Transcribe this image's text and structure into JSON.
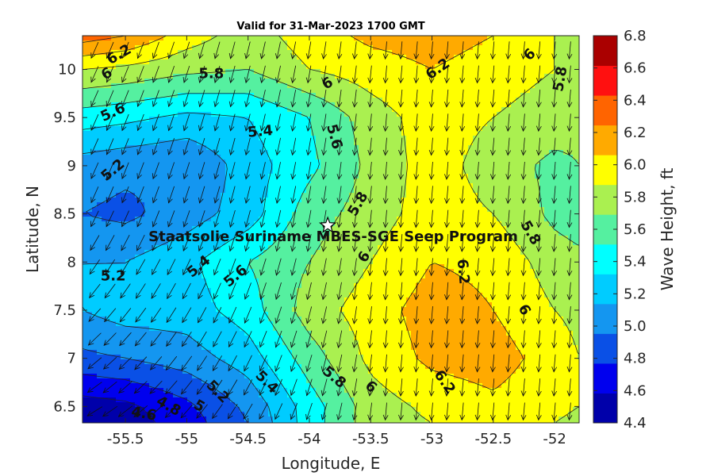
{
  "chart_data": {
    "type": "heatmap",
    "title": "Valid for 31-Mar-2023 1700 GMT",
    "xlabel": "Longitude, E",
    "ylabel": "Latitude, N",
    "xlim": [
      -55.85,
      -51.8
    ],
    "ylim": [
      6.33,
      10.35
    ],
    "x_ticks": [
      -55.5,
      -55,
      -54.5,
      -54,
      -53.5,
      -53,
      -52.5,
      -52
    ],
    "y_ticks": [
      6.5,
      7,
      7.5,
      8,
      8.5,
      9,
      9.5,
      10
    ],
    "x_tick_labels": [
      "-55.5",
      "-55",
      "-54.5",
      "-54",
      "-53.5",
      "-53",
      "-52.5",
      "-52"
    ],
    "y_tick_labels": [
      "6.5",
      "7",
      "7.5",
      "8",
      "8.5",
      "9",
      "9.5",
      "10"
    ],
    "colorbar": {
      "label": "Wave Height, ft",
      "range": [
        4.4,
        6.8
      ],
      "levels": [
        4.4,
        4.6,
        4.8,
        5.0,
        5.2,
        5.4,
        5.6,
        5.8,
        6.0,
        6.2,
        6.4,
        6.6,
        6.8
      ],
      "tick_labels": [
        "4.4",
        "4.6",
        "4.8",
        "5.0",
        "5.2",
        "5.4",
        "5.6",
        "5.8",
        "6.0",
        "6.2",
        "6.4",
        "6.6",
        "6.8"
      ],
      "colors": [
        "#0000aa",
        "#0000ee",
        "#0a50e6",
        "#1496f0",
        "#00ccff",
        "#00ffff",
        "#55f0a0",
        "#aaf050",
        "#ffff00",
        "#ffaa00",
        "#ff6400",
        "#ff1010",
        "#aa0000"
      ]
    },
    "field_nodes": {
      "x": [
        -55.85,
        -55.5,
        -55.0,
        -54.5,
        -54.0,
        -53.5,
        -53.0,
        -52.5,
        -52.0,
        -51.8
      ],
      "y": [
        6.33,
        6.5,
        7.0,
        7.5,
        8.0,
        8.5,
        9.0,
        9.5,
        10.0,
        10.35
      ],
      "z": [
        [
          4.45,
          4.5,
          4.7,
          5.0,
          5.5,
          5.9,
          6.0,
          6.1,
          6.0,
          5.95
        ],
        [
          4.5,
          4.55,
          4.75,
          5.05,
          5.5,
          5.9,
          6.05,
          6.15,
          6.05,
          6.0
        ],
        [
          4.95,
          5.0,
          5.1,
          5.3,
          5.7,
          6.05,
          6.25,
          6.3,
          6.1,
          6.0
        ],
        [
          5.2,
          5.3,
          5.3,
          5.5,
          5.9,
          6.1,
          6.3,
          6.2,
          6.0,
          5.95
        ],
        [
          5.2,
          5.2,
          5.35,
          5.6,
          5.8,
          6.0,
          6.2,
          6.15,
          5.9,
          5.85
        ],
        [
          5.0,
          4.95,
          5.1,
          5.3,
          5.7,
          5.9,
          6.1,
          6.0,
          5.75,
          5.7
        ],
        [
          5.1,
          5.05,
          5.0,
          5.3,
          5.55,
          5.85,
          6.1,
          5.9,
          5.75,
          5.8
        ],
        [
          5.5,
          5.45,
          5.35,
          5.4,
          5.6,
          5.9,
          6.1,
          6.0,
          5.9,
          5.85
        ],
        [
          6.0,
          5.95,
          5.85,
          5.8,
          6.0,
          6.1,
          6.2,
          6.1,
          6.0,
          5.9
        ],
        [
          6.5,
          6.4,
          6.1,
          5.9,
          6.1,
          6.25,
          6.3,
          6.2,
          6.0,
          5.9
        ]
      ]
    },
    "contour_labels": [
      {
        "text": "6.2",
        "lon": -55.55,
        "lat": 10.15,
        "rot": -30
      },
      {
        "text": "6",
        "lon": -55.65,
        "lat": 9.95,
        "rot": -30
      },
      {
        "text": "5.8",
        "lon": -54.8,
        "lat": 9.95,
        "rot": 0
      },
      {
        "text": "5.6",
        "lon": -55.6,
        "lat": 9.55,
        "rot": -25
      },
      {
        "text": "5.4",
        "lon": -54.4,
        "lat": 9.35,
        "rot": -5
      },
      {
        "text": "5.2",
        "lon": -55.6,
        "lat": 8.95,
        "rot": -40
      },
      {
        "text": "5.6",
        "lon": -53.8,
        "lat": 9.3,
        "rot": 75
      },
      {
        "text": "6",
        "lon": -53.85,
        "lat": 9.85,
        "rot": -30
      },
      {
        "text": "6.2",
        "lon": -52.95,
        "lat": 10.0,
        "rot": -35
      },
      {
        "text": "6",
        "lon": -52.2,
        "lat": 10.15,
        "rot": -45
      },
      {
        "text": "5.8",
        "lon": -51.95,
        "lat": 9.9,
        "rot": -80
      },
      {
        "text": "5.8",
        "lon": -53.6,
        "lat": 8.6,
        "rot": -60
      },
      {
        "text": "5.8",
        "lon": -52.2,
        "lat": 8.3,
        "rot": 60
      },
      {
        "text": "6",
        "lon": -53.55,
        "lat": 8.05,
        "rot": -60
      },
      {
        "text": "6.2",
        "lon": -52.75,
        "lat": 7.9,
        "rot": 85
      },
      {
        "text": "6",
        "lon": -52.25,
        "lat": 7.5,
        "rot": 60
      },
      {
        "text": "5.4",
        "lon": -54.9,
        "lat": 7.95,
        "rot": -40
      },
      {
        "text": "5.6",
        "lon": -54.6,
        "lat": 7.85,
        "rot": -40
      },
      {
        "text": "5.2",
        "lon": -55.6,
        "lat": 7.85,
        "rot": 0
      },
      {
        "text": "5.8",
        "lon": -53.8,
        "lat": 6.8,
        "rot": 40
      },
      {
        "text": "6",
        "lon": -53.5,
        "lat": 6.7,
        "rot": 40
      },
      {
        "text": "6.2",
        "lon": -52.9,
        "lat": 6.75,
        "rot": 55
      },
      {
        "text": "5.4",
        "lon": -54.35,
        "lat": 6.75,
        "rot": 45
      },
      {
        "text": "5.2",
        "lon": -54.75,
        "lat": 6.65,
        "rot": 45
      },
      {
        "text": "5",
        "lon": -54.9,
        "lat": 6.5,
        "rot": 30
      },
      {
        "text": "4.8",
        "lon": -55.15,
        "lat": 6.5,
        "rot": 30
      },
      {
        "text": "4.6",
        "lon": -55.35,
        "lat": 6.42,
        "rot": 10
      }
    ],
    "annotation": {
      "text": "Staatsolie Suriname MBES-SGE Seep Program",
      "marker": "star",
      "lon": -53.85,
      "lat": 8.38
    },
    "vectors": {
      "description_free": true,
      "lon_start": -55.75,
      "lon_step": 0.125,
      "lat_start": 6.45,
      "lat_step": 0.25
    }
  }
}
